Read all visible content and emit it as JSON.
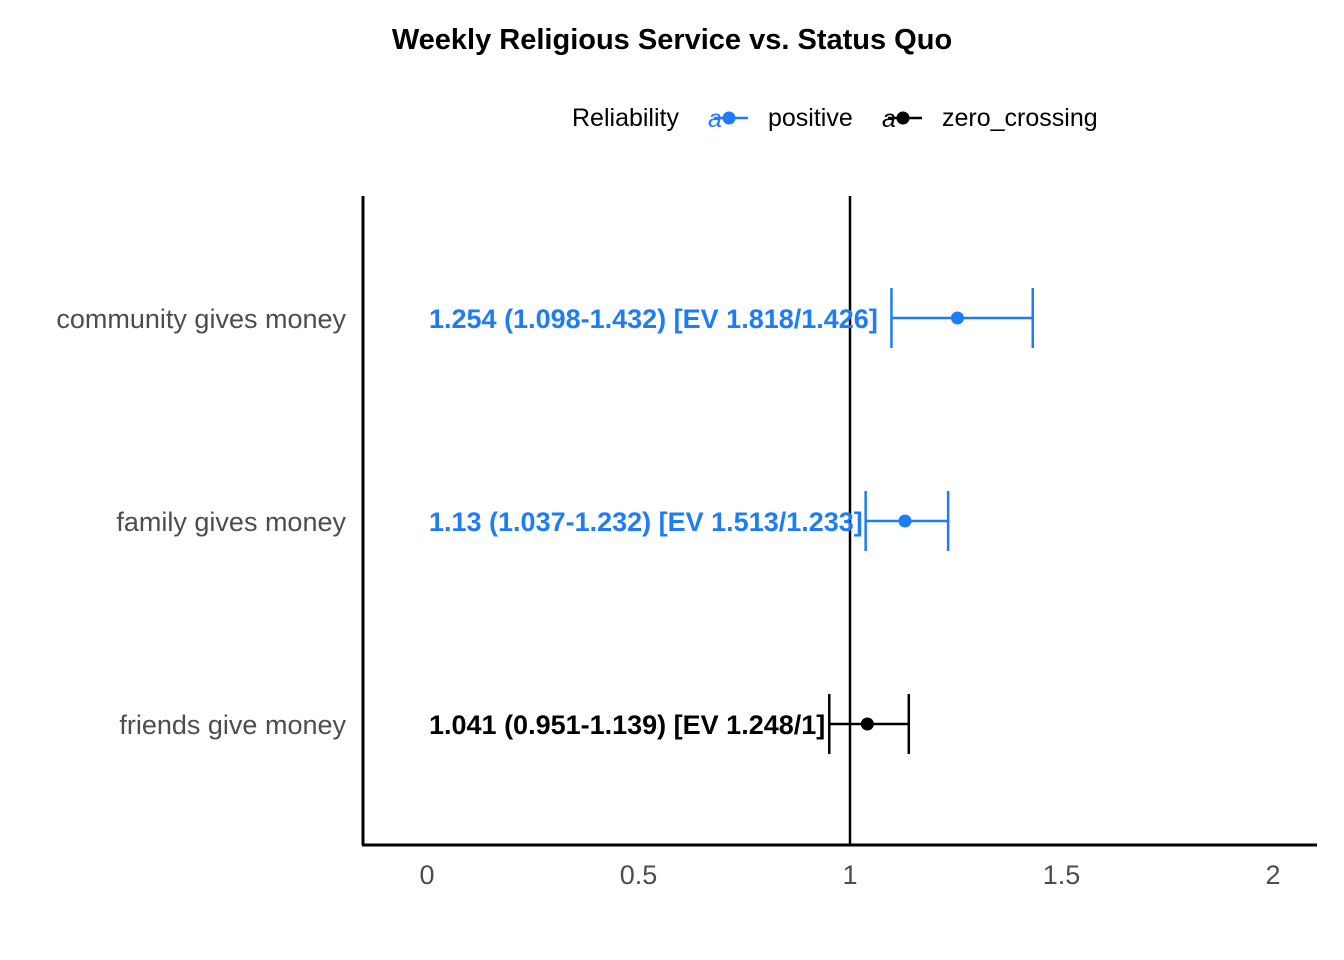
{
  "chart_data": {
    "type": "scatter",
    "title": "Weekly Religious Service vs. Status Quo",
    "xlabel": "",
    "ylabel": "",
    "xlim": [
      -0.15,
      2.1
    ],
    "xticks": [
      0,
      0.5,
      1,
      1.5,
      2
    ],
    "xtick_labels": [
      "0",
      "0.5",
      "1",
      "1.5",
      "2"
    ],
    "reference_line": 1,
    "grid": false,
    "legend": {
      "title": "Reliability",
      "position": "top",
      "entries": [
        {
          "label": "positive",
          "color": "#1f7cf7"
        },
        {
          "label": "zero_crossing",
          "color": "#000000"
        }
      ]
    },
    "categories": [
      "community gives money",
      "family gives money",
      "friends give money"
    ],
    "points": [
      {
        "category": "community gives money",
        "estimate": 1.254,
        "lower": 1.098,
        "upper": 1.432,
        "reliability": "positive",
        "label": "1.254 (1.098-1.432) [EV 1.818/1.426]"
      },
      {
        "category": "family gives money",
        "estimate": 1.13,
        "lower": 1.037,
        "upper": 1.232,
        "reliability": "positive",
        "label": "1.13 (1.037-1.232) [EV 1.513/1.233]"
      },
      {
        "category": "friends give money",
        "estimate": 1.041,
        "lower": 0.951,
        "upper": 1.139,
        "reliability": "zero_crossing",
        "label": "1.041 (0.951-1.139) [EV 1.248/1]"
      }
    ],
    "label_x": 0
  },
  "colors": {
    "positive": "#1f7cf7",
    "zero_crossing": "#000000"
  }
}
